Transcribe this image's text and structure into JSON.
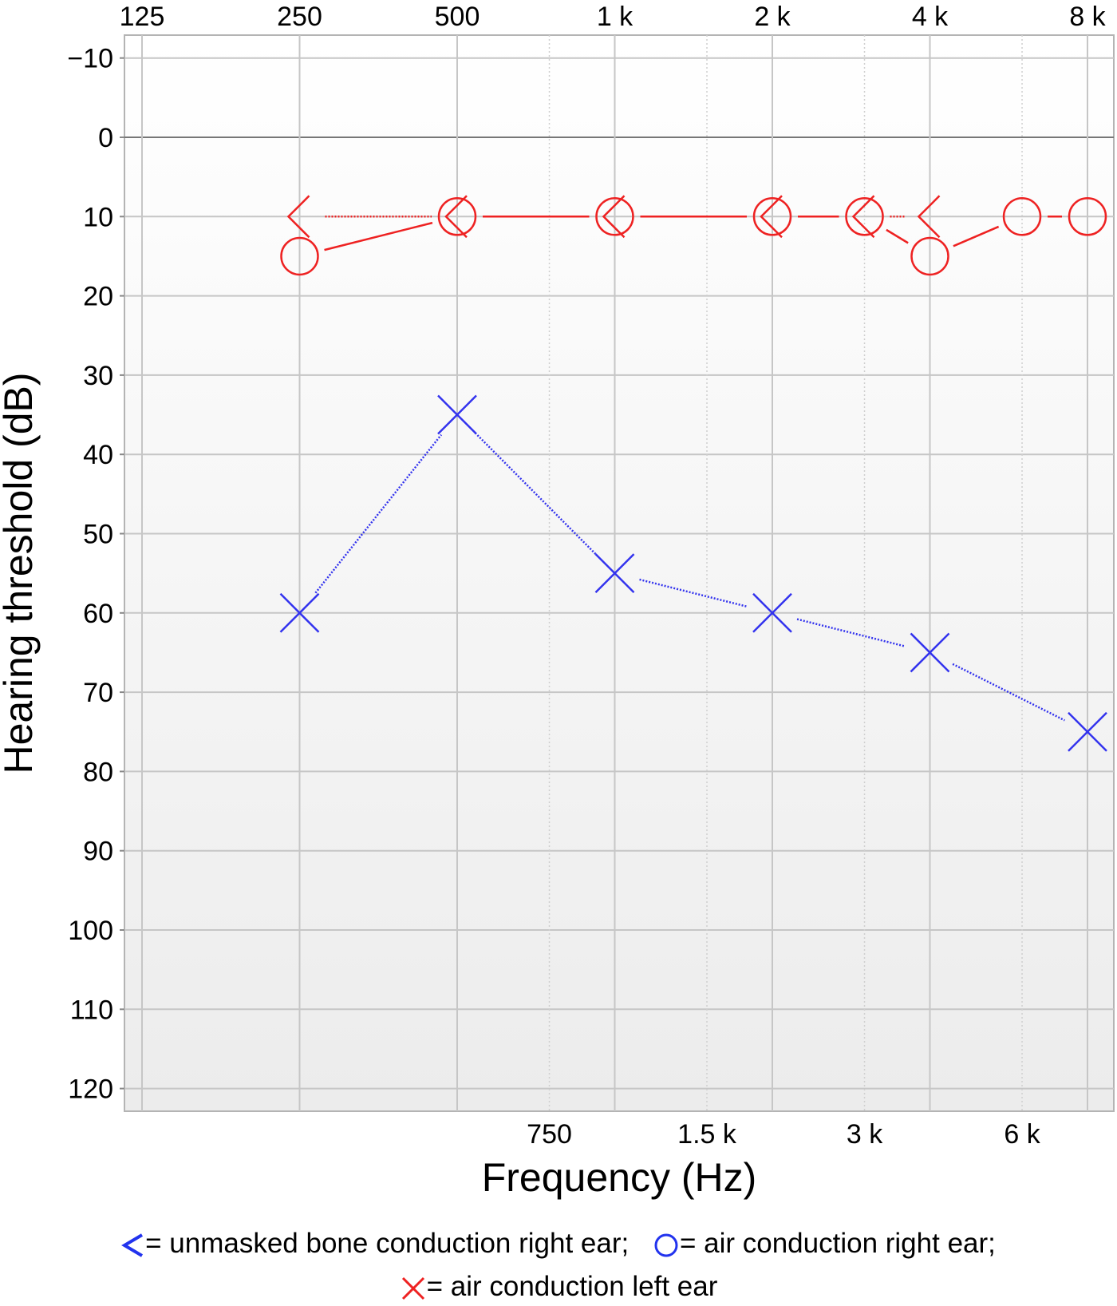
{
  "chart_data": {
    "type": "scatter",
    "xlabel": "Frequency (Hz)",
    "ylabel": "Hearing threshold (dB)",
    "x_scale": "log2",
    "x_top_ticks": [
      {
        "value": 125,
        "label": "125"
      },
      {
        "value": 250,
        "label": "250"
      },
      {
        "value": 500,
        "label": "500"
      },
      {
        "value": 1000,
        "label": "1 k"
      },
      {
        "value": 2000,
        "label": "2 k"
      },
      {
        "value": 4000,
        "label": "4 k"
      },
      {
        "value": 8000,
        "label": "8 k"
      }
    ],
    "x_bottom_ticks": [
      {
        "value": 750,
        "label": "750"
      },
      {
        "value": 1500,
        "label": "1.5 k"
      },
      {
        "value": 3000,
        "label": "3 k"
      },
      {
        "value": 6000,
        "label": "6 k"
      }
    ],
    "y_ticks": [
      {
        "value": -10,
        "label": "−10"
      },
      {
        "value": 0,
        "label": "0"
      },
      {
        "value": 10,
        "label": "10"
      },
      {
        "value": 20,
        "label": "20"
      },
      {
        "value": 30,
        "label": "30"
      },
      {
        "value": 40,
        "label": "40"
      },
      {
        "value": 50,
        "label": "50"
      },
      {
        "value": 60,
        "label": "60"
      },
      {
        "value": 70,
        "label": "70"
      },
      {
        "value": 80,
        "label": "80"
      },
      {
        "value": 90,
        "label": "90"
      },
      {
        "value": 100,
        "label": "100"
      },
      {
        "value": 110,
        "label": "110"
      },
      {
        "value": 120,
        "label": "120"
      }
    ],
    "ylim": [
      -12.5,
      122.5
    ],
    "y_inverted": true,
    "grid": true,
    "series": [
      {
        "name": "unmasked bone conduction right ear",
        "marker": "bracket-left",
        "color": "#ee2222",
        "points": [
          {
            "x": 250,
            "y": 10
          },
          {
            "x": 500,
            "y": 10
          },
          {
            "x": 1000,
            "y": 10
          },
          {
            "x": 2000,
            "y": 10
          },
          {
            "x": 3000,
            "y": 10
          },
          {
            "x": 4000,
            "y": 10
          }
        ]
      },
      {
        "name": "air conduction right ear",
        "marker": "circle",
        "color": "#ee2222",
        "points": [
          {
            "x": 250,
            "y": 15
          },
          {
            "x": 500,
            "y": 10
          },
          {
            "x": 1000,
            "y": 10
          },
          {
            "x": 2000,
            "y": 10
          },
          {
            "x": 3000,
            "y": 10
          },
          {
            "x": 4000,
            "y": 15
          },
          {
            "x": 6000,
            "y": 10
          },
          {
            "x": 8000,
            "y": 10
          }
        ]
      },
      {
        "name": "air conduction left ear",
        "marker": "cross",
        "color": "#3333ee",
        "points": [
          {
            "x": 250,
            "y": 60
          },
          {
            "x": 500,
            "y": 35
          },
          {
            "x": 1000,
            "y": 55
          },
          {
            "x": 2000,
            "y": 60
          },
          {
            "x": 4000,
            "y": 65
          },
          {
            "x": 8000,
            "y": 75
          }
        ]
      }
    ]
  },
  "legend": {
    "bone_label": "= unmasked bone conduction right ear;",
    "air_right_label": "= air conduction right ear;",
    "air_left_label": "= air conduction left ear",
    "symbol_color": "#2233ee",
    "cross_color": "#ee2222"
  }
}
